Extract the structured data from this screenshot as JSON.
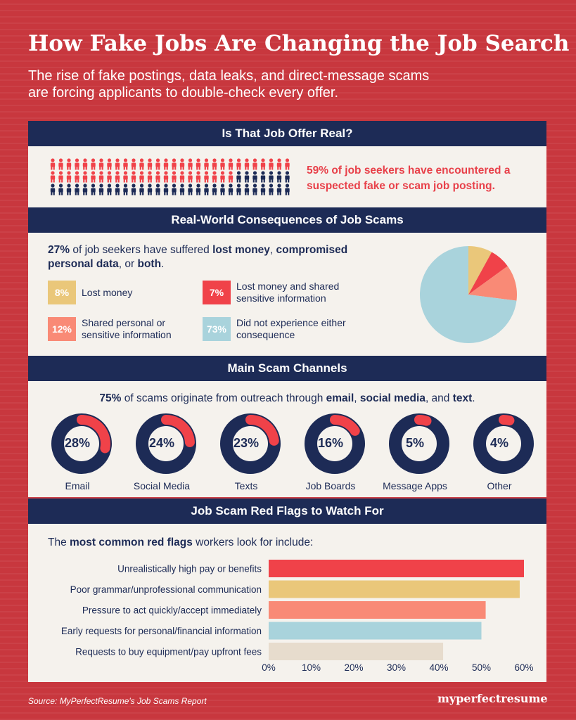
{
  "header": {
    "title": "How Fake Jobs Are Changing the Job Search",
    "subtitle_line1": "The rise of fake postings, data leaks, and direct-message scams",
    "subtitle_line2": "are forcing applicants to double-check every offer."
  },
  "section1": {
    "heading": "Is That Job Offer Real?",
    "stat_line1": "59% of job seekers have encountered a",
    "stat_line2": "suspected fake or scam job posting.",
    "people_total": 90,
    "people_highlighted_fraction": 0.59
  },
  "section2": {
    "heading": "Real-World Consequences of Job Scams",
    "lead": {
      "pct": "27%",
      "t1": " of job seekers have suffered ",
      "b1": "lost money",
      "t2": ", ",
      "b2": "compromised personal data",
      "t3": ", or ",
      "b3": "both",
      "t4": "."
    },
    "legend": [
      {
        "value": "8%",
        "label1": "Lost money",
        "label2": "",
        "color": "#eac77a"
      },
      {
        "value": "7%",
        "label1": "Lost money and shared",
        "label2": "sensitive information",
        "color": "#f04249"
      },
      {
        "value": "12%",
        "label1": "Shared personal or",
        "label2": "sensitive information",
        "color": "#f98a76"
      },
      {
        "value": "73%",
        "label1": "Did not experience either",
        "label2": "consequence",
        "color": "#a9d3dc"
      }
    ]
  },
  "section3": {
    "heading": "Main Scam Channels",
    "lead": {
      "pct": "75%",
      "t1": " of scams originate from outreach through ",
      "b1": "email",
      "t2": ", ",
      "b2": "social media",
      "t3": ", and ",
      "b3": "text",
      "t4": "."
    }
  },
  "section4": {
    "heading": "Job Scam Red Flags to Watch For",
    "lead": {
      "t1": "The ",
      "b1": "most common red flags",
      "t2": " workers look for include:"
    }
  },
  "chart_data": [
    {
      "type": "pie",
      "categories": [
        "Lost money",
        "Lost money and shared sensitive information",
        "Shared personal or sensitive information",
        "Did not experience either consequence"
      ],
      "values": [
        8,
        7,
        12,
        73
      ],
      "colors": [
        "#eac77a",
        "#f04249",
        "#f98a76",
        "#a9d3dc"
      ]
    },
    {
      "type": "pie",
      "subtype": "donut-set",
      "categories": [
        "Email",
        "Social Media",
        "Texts",
        "Job Boards",
        "Message Apps",
        "Other"
      ],
      "values": [
        28,
        24,
        23,
        16,
        5,
        4
      ],
      "value_labels": [
        "28%",
        "24%",
        "23%",
        "16%",
        "5%",
        "4%"
      ],
      "colors": {
        "highlight": "#f04249",
        "base": "#1d2b56"
      }
    },
    {
      "type": "bar",
      "orientation": "horizontal",
      "categories": [
        "Unrealistically high pay or benefits",
        "Poor grammar/unprofessional communication",
        "Pressure to act quickly/accept immediately",
        "Early requests for personal/financial information",
        "Requests to buy equipment/pay upfront fees"
      ],
      "values": [
        60,
        59,
        51,
        50,
        41
      ],
      "colors": [
        "#f04249",
        "#eac77a",
        "#f98a76",
        "#a9d3dc",
        "#e7dccd"
      ],
      "xlim": [
        0,
        60
      ],
      "xticks": [
        "0%",
        "10%",
        "20%",
        "30%",
        "40%",
        "50%",
        "60%"
      ]
    }
  ],
  "footer": {
    "source": "Source: MyPerfectResume's Job Scams Report",
    "brand": "myperfectresume"
  },
  "colors": {
    "background": "#c8373e",
    "navy": "#1d2b56",
    "card": "#f5f2ed"
  }
}
